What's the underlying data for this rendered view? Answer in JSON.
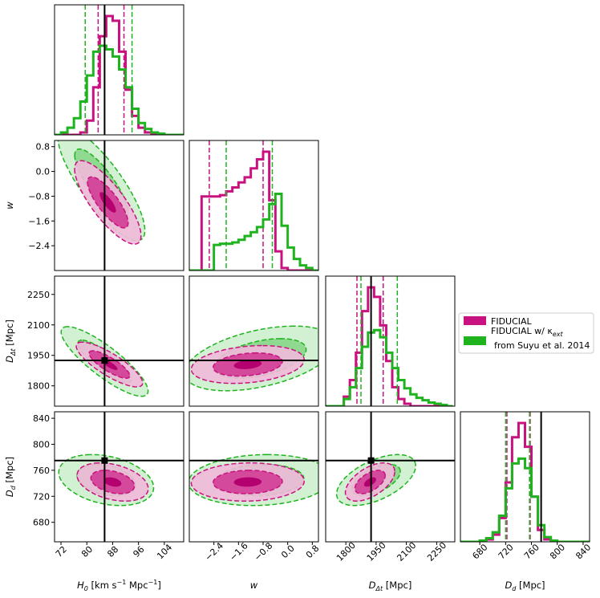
{
  "chart_data": {
    "type": "corner",
    "parameters": [
      {
        "key": "H0",
        "label_main": "H",
        "label_sub": "0",
        "label_suffix": " [km s",
        "label_sup": "−1",
        "label_suffix2": " Mpc",
        "label_sup2": "−1",
        "label_end": "]",
        "range": [
          70,
          110
        ],
        "ticks": [
          72,
          80,
          88,
          96,
          104
        ],
        "tick_labels": [
          "72",
          "80",
          "88",
          "96",
          "104"
        ],
        "truth": 85.5
      },
      {
        "key": "w",
        "label_main": "w",
        "range": [
          -3.2,
          1.0
        ],
        "ticks": [
          -2.4,
          -1.6,
          -0.8,
          0.0,
          0.8
        ],
        "tick_labels": [
          "−2.4",
          "−1.6",
          "−0.8",
          "0.0",
          "0.8"
        ],
        "truth": null
      },
      {
        "key": "Ddt",
        "label_main": "D",
        "label_sub": "Δt",
        "label_suffix": " [Mpc]",
        "range": [
          1700,
          2340
        ],
        "ticks": [
          1800,
          1950,
          2100,
          2250
        ],
        "tick_labels": [
          "1800",
          "1950",
          "2100",
          "2250"
        ],
        "truth": 1925
      },
      {
        "key": "Dd",
        "label_main": "D",
        "label_sub": "d",
        "label_suffix": " [Mpc]",
        "range": [
          650,
          850
        ],
        "ticks": [
          680,
          720,
          760,
          800,
          840
        ],
        "tick_labels": [
          "680",
          "720",
          "760",
          "800",
          "840"
        ],
        "truth": 775
      }
    ],
    "series": [
      {
        "name": "FIDUCIAL",
        "color": "#c8127f",
        "fill_light": "#f0b9d9",
        "fill_dark": "#d13c96",
        "core": "#b4006e",
        "marginals": {
          "H0": {
            "bin_edges": [
              70,
              72,
              74,
              76,
              78,
              80,
              82,
              84,
              86,
              88,
              90,
              92,
              94,
              96,
              98,
              100,
              102,
              104,
              106,
              108,
              110
            ],
            "counts": [
              0,
              0,
              0,
              0,
              2,
              12,
              40,
              83,
              100,
              96,
              70,
              38,
              16,
              6,
              2,
              1,
              0,
              0,
              0,
              0
            ],
            "quantiles": [
              83.5,
              91.5
            ]
          },
          "w": {
            "bin_edges": [
              -3.2,
              -3.0,
              -2.8,
              -2.6,
              -2.4,
              -2.2,
              -2.0,
              -1.8,
              -1.6,
              -1.4,
              -1.2,
              -1.0,
              -0.8,
              -0.6,
              -0.4,
              -0.2,
              0.0,
              0.2,
              0.4,
              0.6,
              0.8,
              1.0
            ],
            "counts": [
              0,
              0,
              58,
              58,
              58,
              59,
              62,
              65,
              69,
              73,
              80,
              87,
              93,
              55,
              15,
              2,
              0,
              0,
              0,
              0,
              0
            ],
            "quantiles": [
              -2.55,
              -0.8
            ]
          },
          "Ddt": {
            "bin_edges": [
              1700,
              1730,
              1760,
              1790,
              1820,
              1850,
              1880,
              1910,
              1940,
              1970,
              2000,
              2030,
              2060,
              2090,
              2120,
              2150,
              2180,
              2210,
              2240,
              2270,
              2300,
              2330
            ],
            "counts": [
              0,
              0,
              0,
              8,
              22,
              45,
              80,
              100,
              92,
              68,
              38,
              16,
              6,
              2,
              0,
              0,
              0,
              0,
              0,
              0,
              0
            ],
            "quantiles": [
              1855,
              1985
            ]
          },
          "Dd": {
            "bin_edges": [
              650,
              660,
              670,
              680,
              690,
              700,
              710,
              720,
              730,
              740,
              750,
              760,
              770,
              780,
              790,
              800,
              810,
              820,
              830,
              840,
              850
            ],
            "counts": [
              0,
              0,
              0,
              1,
              2,
              6,
              20,
              50,
              88,
              100,
              80,
              38,
              10,
              2,
              0,
              0,
              0,
              0,
              0,
              0
            ],
            "quantiles": [
              722,
              758
            ]
          }
        }
      },
      {
        "name": "FIDUCIAL w/ κ_ext from Suyu et al. 2014",
        "color": "#1fb31f",
        "fill_light": "#c3ecc3",
        "fill_dark": "#79d079",
        "marginals": {
          "H0": {
            "bin_edges": [
              70,
              72,
              74,
              76,
              78,
              80,
              82,
              84,
              86,
              88,
              90,
              92,
              94,
              96,
              98,
              100,
              102,
              104,
              106,
              108,
              110
            ],
            "counts": [
              0,
              2,
              6,
              14,
              28,
              50,
              70,
              75,
              72,
              66,
              55,
              40,
              22,
              10,
              5,
              2,
              1,
              0,
              0,
              0
            ],
            "quantiles": [
              79.5,
              94.0
            ]
          },
          "w": {
            "bin_edges": [
              -3.2,
              -3.0,
              -2.8,
              -2.6,
              -2.4,
              -2.2,
              -2.0,
              -1.8,
              -1.6,
              -1.4,
              -1.2,
              -1.0,
              -0.8,
              -0.6,
              -0.4,
              -0.2,
              0.0,
              0.2,
              0.4,
              0.6,
              0.8,
              1.0
            ],
            "counts": [
              0,
              0,
              0,
              0,
              20,
              21,
              21,
              22,
              24,
              27,
              30,
              34,
              40,
              52,
              60,
              35,
              18,
              9,
              4,
              2,
              0
            ],
            "quantiles": [
              -2.0,
              -0.5
            ]
          },
          "Ddt": {
            "bin_edges": [
              1700,
              1730,
              1760,
              1790,
              1820,
              1850,
              1880,
              1910,
              1940,
              1970,
              2000,
              2030,
              2060,
              2090,
              2120,
              2150,
              2180,
              2210,
              2240,
              2270,
              2300,
              2330
            ],
            "counts": [
              0,
              0,
              0,
              6,
              16,
              32,
              50,
              62,
              64,
              58,
              45,
              32,
              22,
              15,
              10,
              7,
              5,
              3,
              2,
              1,
              0
            ],
            "quantiles": [
              1875,
              2055
            ]
          },
          "Dd": {
            "bin_edges": [
              650,
              660,
              670,
              680,
              690,
              700,
              710,
              720,
              730,
              740,
              750,
              760,
              770,
              780,
              790,
              800,
              810,
              820,
              830,
              840,
              850
            ],
            "counts": [
              0,
              0,
              0,
              1,
              3,
              8,
              22,
              45,
              66,
              70,
              62,
              38,
              14,
              4,
              1,
              0,
              0,
              0,
              0,
              0
            ],
            "quantiles": [
              720,
              757
            ]
          }
        }
      }
    ],
    "legend_placement": "right-middle",
    "truth_color": "#000000"
  },
  "legend": {
    "entries": [
      {
        "label": "FIDUCIAL"
      },
      {
        "label_main": "FIDUCIAL w/ κ",
        "label_sub": "ext",
        "label_line2": "from Suyu et al. 2014"
      }
    ]
  }
}
